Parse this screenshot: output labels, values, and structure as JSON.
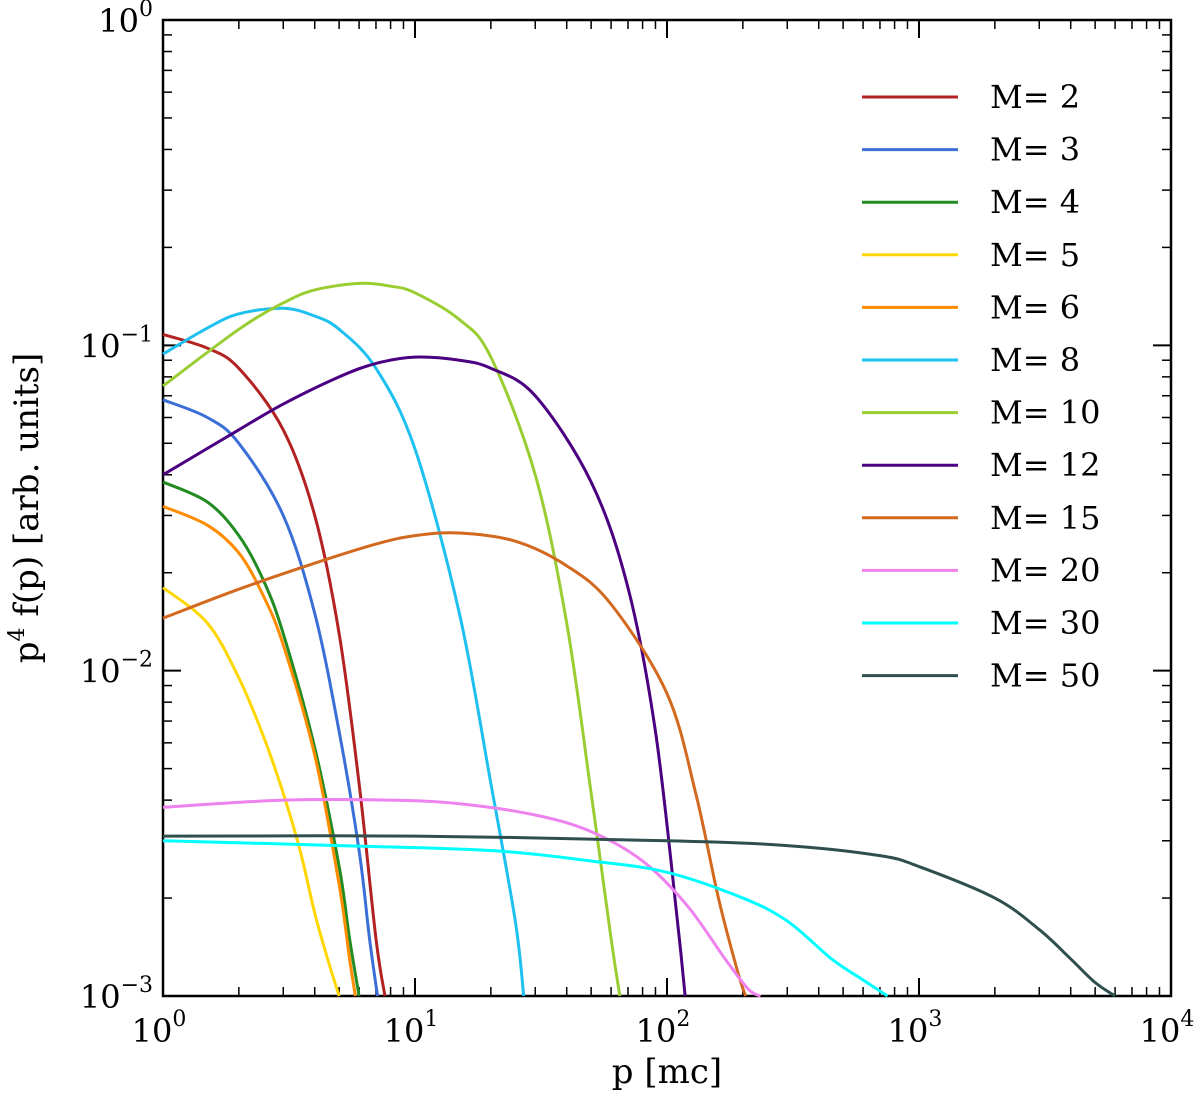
{
  "chart_data": {
    "type": "line",
    "xlabel": "p [mc]",
    "ylabel": "p4 f(p) [arb. units]",
    "x_scale": "log",
    "y_scale": "log",
    "xlim": [
      1,
      10000
    ],
    "ylim": [
      0.001,
      1
    ],
    "x_ticks": [
      {
        "value": 1,
        "base": "10",
        "exp": "0"
      },
      {
        "value": 10,
        "base": "10",
        "exp": "1"
      },
      {
        "value": 100,
        "base": "10",
        "exp": "2"
      },
      {
        "value": 1000,
        "base": "10",
        "exp": "3"
      },
      {
        "value": 10000,
        "base": "10",
        "exp": "4"
      }
    ],
    "y_ticks": [
      {
        "value": 0.001,
        "base": "10",
        "exp": "−3"
      },
      {
        "value": 0.01,
        "base": "10",
        "exp": "−2"
      },
      {
        "value": 0.1,
        "base": "10",
        "exp": "−1"
      },
      {
        "value": 1,
        "base": "10",
        "exp": "0"
      }
    ],
    "grid": false,
    "legend_position": "top-right",
    "series": [
      {
        "name": "M= 2",
        "color": "#b22222",
        "x": [
          1,
          1.5,
          2,
          3,
          4,
          5,
          6,
          7,
          7.6
        ],
        "y": [
          0.108,
          0.098,
          0.085,
          0.055,
          0.03,
          0.013,
          0.0045,
          0.0015,
          0.001
        ]
      },
      {
        "name": "M= 3",
        "color": "#3b6fd8",
        "x": [
          1,
          1.5,
          2,
          3,
          4,
          5,
          6,
          6.6,
          7.1
        ],
        "y": [
          0.068,
          0.06,
          0.05,
          0.03,
          0.015,
          0.0065,
          0.0028,
          0.0015,
          0.001
        ]
      },
      {
        "name": "M= 4",
        "color": "#228b22",
        "x": [
          1,
          1.5,
          2,
          2.5,
          3,
          4,
          5,
          5.5,
          6
        ],
        "y": [
          0.038,
          0.033,
          0.026,
          0.019,
          0.013,
          0.0058,
          0.0025,
          0.0015,
          0.001
        ]
      },
      {
        "name": "M= 5",
        "color": "#ffd700",
        "x": [
          1,
          1.5,
          2,
          2.5,
          3,
          3.5,
          4,
          4.5,
          5
        ],
        "y": [
          0.018,
          0.014,
          0.0095,
          0.0063,
          0.0042,
          0.0028,
          0.0018,
          0.0013,
          0.001
        ]
      },
      {
        "name": "M= 6",
        "color": "#ff8c00",
        "x": [
          1,
          1.5,
          2,
          2.5,
          3,
          4,
          5,
          5.5,
          5.8
        ],
        "y": [
          0.032,
          0.028,
          0.023,
          0.017,
          0.012,
          0.0055,
          0.0022,
          0.0013,
          0.001
        ]
      },
      {
        "name": "M= 8",
        "color": "#1ec0f0",
        "x": [
          1,
          1.5,
          2,
          3,
          4,
          5,
          7,
          10,
          15,
          20,
          25,
          27
        ],
        "y": [
          0.094,
          0.113,
          0.125,
          0.13,
          0.123,
          0.112,
          0.085,
          0.048,
          0.015,
          0.0045,
          0.0017,
          0.001
        ]
      },
      {
        "name": "M= 10",
        "color": "#9acd32",
        "x": [
          1,
          2,
          3,
          4,
          6,
          8,
          10,
          15,
          20,
          30,
          40,
          50,
          60,
          65
        ],
        "y": [
          0.075,
          0.112,
          0.135,
          0.148,
          0.155,
          0.152,
          0.145,
          0.12,
          0.092,
          0.04,
          0.014,
          0.0042,
          0.0015,
          0.001
        ]
      },
      {
        "name": "M= 12",
        "color": "#4b0082",
        "x": [
          1,
          2,
          3,
          5,
          7,
          10,
          15,
          20,
          30,
          50,
          70,
          90,
          110,
          118
        ],
        "y": [
          0.04,
          0.055,
          0.066,
          0.08,
          0.088,
          0.092,
          0.09,
          0.085,
          0.07,
          0.038,
          0.018,
          0.0065,
          0.0017,
          0.001
        ]
      },
      {
        "name": "M= 15",
        "color": "#d2691e",
        "x": [
          1,
          2,
          4,
          7,
          10,
          15,
          25,
          40,
          60,
          100,
          130,
          160,
          190,
          205
        ],
        "y": [
          0.0145,
          0.0178,
          0.0214,
          0.0245,
          0.026,
          0.0265,
          0.025,
          0.021,
          0.016,
          0.0085,
          0.0042,
          0.002,
          0.0012,
          0.001
        ]
      },
      {
        "name": "M= 20",
        "color": "#ee82ee",
        "x": [
          1,
          3,
          8,
          15,
          30,
          50,
          80,
          120,
          170,
          210,
          235
        ],
        "y": [
          0.0038,
          0.004,
          0.004,
          0.0039,
          0.0036,
          0.0032,
          0.0026,
          0.0019,
          0.0013,
          0.00105,
          0.001
        ]
      },
      {
        "name": "M= 30",
        "color": "#00ffff",
        "x": [
          1,
          5,
          20,
          50,
          100,
          200,
          300,
          450,
          600,
          750
        ],
        "y": [
          0.003,
          0.0029,
          0.0028,
          0.0026,
          0.0024,
          0.002,
          0.0017,
          0.0013,
          0.00112,
          0.001
        ]
      },
      {
        "name": "M= 50",
        "color": "#2f4f4f",
        "x": [
          1,
          10,
          100,
          300,
          700,
          1000,
          2000,
          3000,
          4000,
          5000,
          6000
        ],
        "y": [
          0.0031,
          0.0031,
          0.003,
          0.0029,
          0.0027,
          0.0025,
          0.002,
          0.0016,
          0.0013,
          0.0011,
          0.001
        ]
      }
    ]
  }
}
